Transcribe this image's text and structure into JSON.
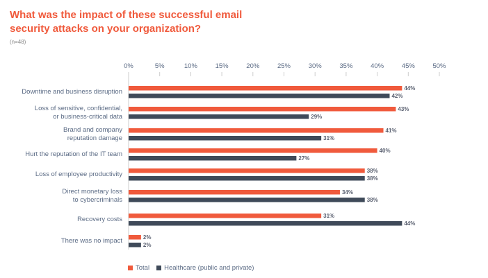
{
  "chart_data": {
    "type": "bar",
    "orientation": "horizontal",
    "title": "What was the impact of these successful email security attacks on your organization?",
    "subtitle": "(n=48)",
    "xlim": [
      0,
      50
    ],
    "ticks": [
      "0%",
      "5%",
      "10%",
      "15%",
      "20%",
      "25%",
      "30%",
      "35%",
      "40%",
      "45%",
      "50%"
    ],
    "tick_values": [
      0,
      5,
      10,
      15,
      20,
      25,
      30,
      35,
      40,
      45,
      50
    ],
    "categories": [
      [
        "Downtime and business disruption"
      ],
      [
        "Loss of sensitive, confidential,",
        "or business-critical data"
      ],
      [
        "Brand and company",
        "reputation damage"
      ],
      [
        "Hurt the reputation of the IT team"
      ],
      [
        "Loss of employee productivity"
      ],
      [
        "Direct monetary loss",
        "to cybercriminals"
      ],
      [
        "Recovery costs"
      ],
      [
        "There was no impact"
      ]
    ],
    "series": [
      {
        "name": "Total",
        "color": "#f05a3c",
        "values": [
          44,
          43,
          41,
          40,
          38,
          34,
          31,
          2
        ]
      },
      {
        "name": "Healthcare (public and private)",
        "color": "#3f4a59",
        "values": [
          42,
          29,
          31,
          27,
          38,
          38,
          44,
          2
        ]
      }
    ],
    "legend": "bottom-left",
    "grid": false
  }
}
